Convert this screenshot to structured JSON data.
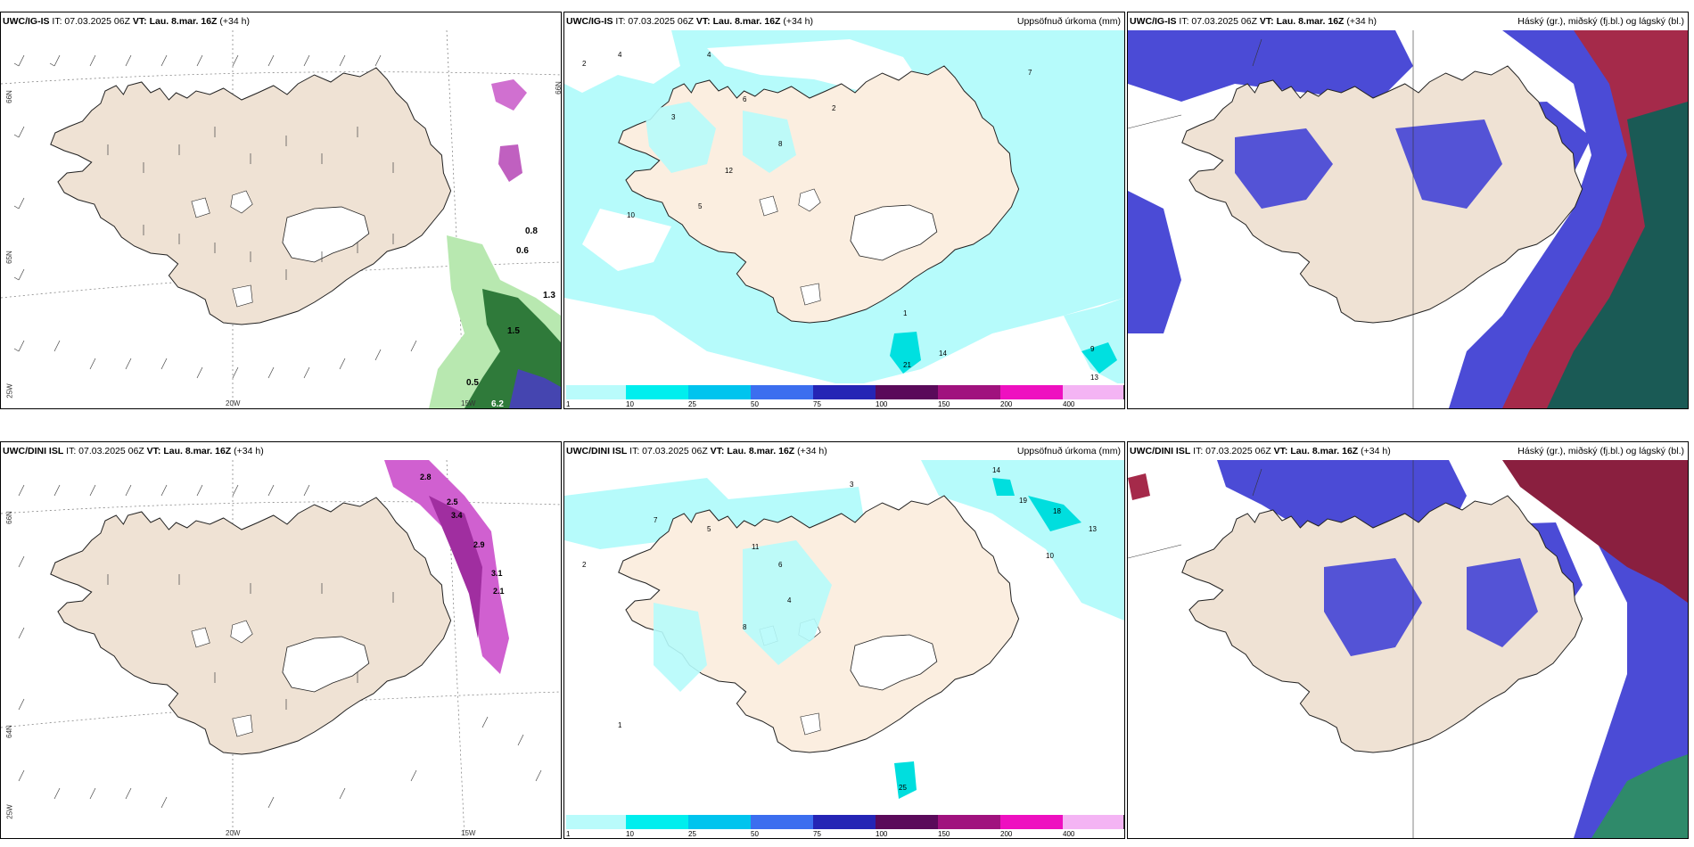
{
  "panels": [
    {
      "model": "UWC/IG-IS",
      "it": "IT: 07.03.2025 06Z",
      "vt": "VT: Lau. 8.mar. 16Z",
      "lead": "(+34 h)",
      "right": ""
    },
    {
      "model": "UWC/IG-IS",
      "it": "IT: 07.03.2025 06Z",
      "vt": "VT: Lau. 8.mar. 16Z",
      "lead": "(+34 h)",
      "right": "Uppsöfnuð úrkoma (mm)"
    },
    {
      "model": "UWC/IG-IS",
      "it": "IT: 07.03.2025 06Z",
      "vt": "VT: Lau. 8.mar. 16Z",
      "lead": "(+34 h)",
      "right": "Háský (gr.), miðský (fj.bl.) og lágský (bl.)"
    },
    {
      "model": "UWC/DINI ISL",
      "it": "IT: 07.03.2025 06Z",
      "vt": "VT: Lau. 8.mar. 16Z",
      "lead": "(+34 h)",
      "right": ""
    },
    {
      "model": "UWC/DINI ISL",
      "it": "IT: 07.03.2025 06Z",
      "vt": "VT: Lau. 8.mar. 16Z",
      "lead": "(+34 h)",
      "right": "Uppsöfnuð úrkoma (mm)"
    },
    {
      "model": "UWC/DINI ISL",
      "it": "IT: 07.03.2025 06Z",
      "vt": "VT: Lau. 8.mar. 16Z",
      "lead": "(+34 h)",
      "right": "Háský (gr.), miðský (fj.bl.) og lágský (bl.)"
    }
  ],
  "coords": {
    "lat66": "66N",
    "lat64": "64N",
    "lat65": "65N",
    "lon20": "20W",
    "lon15": "15W",
    "lon25": "25W",
    "lat66r": "66N"
  },
  "colorbar": {
    "labels": [
      "1",
      "10",
      "25",
      "50",
      "75",
      "100",
      "150",
      "200",
      "400"
    ],
    "colors": [
      "#b9fbfb",
      "#00eeee",
      "#00c4ee",
      "#3c6eef",
      "#2525b5",
      "#5a0a5a",
      "#a0127e",
      "#ee10c0",
      "#f4b4f4"
    ]
  },
  "precip_labels_top": [
    "2",
    "4",
    "4",
    "6",
    "3",
    "2",
    "10",
    "12",
    "14",
    "13",
    "21",
    "9",
    "5",
    "8",
    "7",
    "1"
  ],
  "precip_labels_bot": [
    "14",
    "19",
    "18",
    "13",
    "25",
    "10",
    "11",
    "5",
    "7",
    "3",
    "6",
    "2",
    "1",
    "4",
    "8"
  ],
  "wind_labels_top": [
    "0.8",
    "0.6",
    "0.5",
    "6.2",
    "1.3",
    "1.5"
  ],
  "wind_labels_bot": [
    "2.8",
    "2.5",
    "3.4",
    "2.9",
    "3.1",
    "2.1"
  ],
  "colors": {
    "land": "#efe2d4",
    "precip_light": "#b6fbfb",
    "precip_cyan": "#00eaea",
    "cloud_high": "#1a5a55",
    "cloud_mid": "#a52a4a",
    "cloud_low": "#4b4bd6"
  }
}
